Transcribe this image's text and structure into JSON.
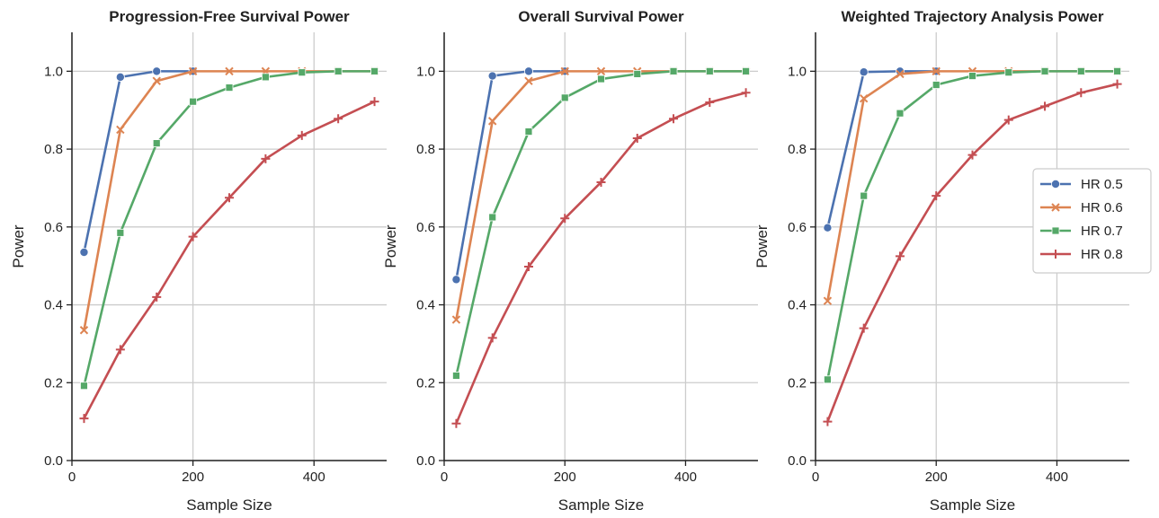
{
  "colors": {
    "HR 0.5": "#4c72b0",
    "HR 0.6": "#dd8452",
    "HR 0.7": "#55a868",
    "HR 0.8": "#c44e52"
  },
  "markers": {
    "HR 0.5": "circle",
    "HR 0.6": "x",
    "HR 0.7": "square",
    "HR 0.8": "plus"
  },
  "legend": {
    "placement": "right-center of third panel",
    "entries": [
      "HR 0.5",
      "HR 0.6",
      "HR 0.7",
      "HR 0.8"
    ]
  },
  "chart_data": [
    {
      "type": "line",
      "title": "Progression-Free Survival Power",
      "xlabel": "Sample Size",
      "ylabel": "Power",
      "xlim": [
        0,
        520
      ],
      "ylim": [
        0,
        1.1
      ],
      "xticks": [
        0,
        200,
        400
      ],
      "yticks": [
        0.0,
        0.2,
        0.4,
        0.6,
        0.8,
        1.0
      ],
      "grid": true,
      "series": [
        {
          "name": "HR 0.5",
          "x": [
            20,
            80,
            140,
            200
          ],
          "y": [
            0.535,
            0.985,
            1.0,
            1.0
          ]
        },
        {
          "name": "HR 0.6",
          "x": [
            20,
            80,
            140,
            200,
            260,
            320,
            380,
            440,
            500
          ],
          "y": [
            0.335,
            0.85,
            0.975,
            1.0,
            1.0,
            1.0,
            1.0,
            1.0,
            1.0
          ]
        },
        {
          "name": "HR 0.7",
          "x": [
            20,
            80,
            140,
            200,
            260,
            320,
            380,
            440,
            500
          ],
          "y": [
            0.192,
            0.585,
            0.815,
            0.922,
            0.958,
            0.985,
            0.997,
            1.0,
            1.0
          ]
        },
        {
          "name": "HR 0.8",
          "x": [
            20,
            80,
            140,
            200,
            260,
            320,
            380,
            440,
            500
          ],
          "y": [
            0.108,
            0.285,
            0.42,
            0.575,
            0.675,
            0.775,
            0.835,
            0.878,
            0.922
          ]
        }
      ]
    },
    {
      "type": "line",
      "title": "Overall Survival Power",
      "xlabel": "Sample Size",
      "ylabel": "Power",
      "xlim": [
        0,
        520
      ],
      "ylim": [
        0,
        1.1
      ],
      "xticks": [
        0,
        200,
        400
      ],
      "yticks": [
        0.0,
        0.2,
        0.4,
        0.6,
        0.8,
        1.0
      ],
      "grid": true,
      "series": [
        {
          "name": "HR 0.5",
          "x": [
            20,
            80,
            140,
            200
          ],
          "y": [
            0.465,
            0.988,
            1.0,
            1.0
          ]
        },
        {
          "name": "HR 0.6",
          "x": [
            20,
            80,
            140,
            200,
            260,
            320,
            380,
            440,
            500
          ],
          "y": [
            0.362,
            0.872,
            0.975,
            1.0,
            1.0,
            1.0,
            1.0,
            1.0,
            1.0
          ]
        },
        {
          "name": "HR 0.7",
          "x": [
            20,
            80,
            140,
            200,
            260,
            320,
            380,
            440,
            500
          ],
          "y": [
            0.218,
            0.625,
            0.845,
            0.932,
            0.98,
            0.993,
            1.0,
            1.0,
            1.0
          ]
        },
        {
          "name": "HR 0.8",
          "x": [
            20,
            80,
            140,
            200,
            260,
            320,
            380,
            440,
            500
          ],
          "y": [
            0.095,
            0.315,
            0.498,
            0.622,
            0.715,
            0.828,
            0.878,
            0.92,
            0.945
          ]
        }
      ]
    },
    {
      "type": "line",
      "title": "Weighted Trajectory Analysis Power",
      "xlabel": "Sample Size",
      "ylabel": "Power",
      "xlim": [
        0,
        520
      ],
      "ylim": [
        0,
        1.1
      ],
      "xticks": [
        0,
        200,
        400
      ],
      "yticks": [
        0.0,
        0.2,
        0.4,
        0.6,
        0.8,
        1.0
      ],
      "grid": true,
      "series": [
        {
          "name": "HR 0.5",
          "x": [
            20,
            80,
            140,
            200
          ],
          "y": [
            0.598,
            0.998,
            1.0,
            1.0
          ]
        },
        {
          "name": "HR 0.6",
          "x": [
            20,
            80,
            140,
            200,
            260,
            320,
            380,
            440,
            500
          ],
          "y": [
            0.41,
            0.93,
            0.993,
            1.0,
            1.0,
            1.0,
            1.0,
            1.0,
            1.0
          ]
        },
        {
          "name": "HR 0.7",
          "x": [
            20,
            80,
            140,
            200,
            260,
            320,
            380,
            440,
            500
          ],
          "y": [
            0.208,
            0.68,
            0.892,
            0.965,
            0.988,
            0.997,
            1.0,
            1.0,
            1.0
          ]
        },
        {
          "name": "HR 0.8",
          "x": [
            20,
            80,
            140,
            200,
            260,
            320,
            380,
            440,
            500
          ],
          "y": [
            0.1,
            0.34,
            0.525,
            0.68,
            0.785,
            0.875,
            0.91,
            0.945,
            0.967
          ]
        }
      ]
    }
  ]
}
